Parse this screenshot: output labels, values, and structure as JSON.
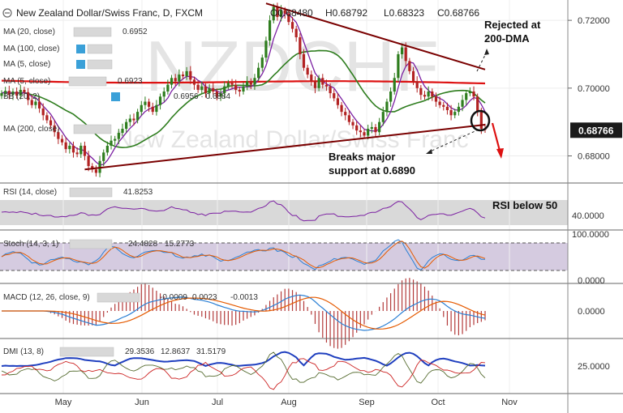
{
  "header": {
    "title": "New Zealand Dollar/Swiss Franc, D, FXCM",
    "ohlc": [
      "O0.68480",
      "H0.68792",
      "L0.68323",
      "C0.68766"
    ],
    "watermark": "NZDCHF",
    "watermark_sub": "New Zealand Dollar/Swiss Franc"
  },
  "legend_main": [
    {
      "label": "MA (20, close)",
      "value": "0.6952",
      "color": "#2e7d1e"
    },
    {
      "label": "MA (100, close)",
      "value": "",
      "color": "#b22222"
    },
    {
      "label": "MA (5, close)",
      "value": "",
      "color": "#9c27b0"
    },
    {
      "label": "MA (5, close)",
      "value": "0.6923",
      "color": "#6a1b9a"
    },
    {
      "label": "BB (20, 2)",
      "value": "0.6956 · 0.6884",
      "color": "#888888"
    },
    {
      "label": "MA (200, close)",
      "value": "",
      "color": "#cc0000"
    }
  ],
  "annotations": {
    "rejected": "Rejected at\n200-DMA",
    "breaks": "Breaks major\nsupport at 0.6890",
    "rsi_note": "RSI below 50"
  },
  "last_price": "0.68766",
  "colors": {
    "up": "#2e7d1e",
    "down": "#b22222",
    "ma20": "#2e7d1e",
    "ma200": "#dd1111",
    "ma5": "#7b1fa2",
    "trend": "#7a0000",
    "last_bg": "#1a1a1a"
  },
  "chart_data": [
    {
      "type": "candlestick",
      "title": "New Zealand Dollar/Swiss Franc, D, FXCM",
      "x_ticks": [
        "May",
        "Jun",
        "Jul",
        "Aug",
        "Sep",
        "Oct",
        "Nov"
      ],
      "ylim": [
        0.672,
        0.726
      ],
      "y_ticks": [
        0.68,
        0.7,
        0.72
      ],
      "y_tick_labels": [
        "0.68000",
        "0.70000",
        "0.72000"
      ],
      "close": [
        0.6985,
        0.6992,
        0.698,
        0.699,
        0.6978,
        0.6995,
        0.6988,
        0.6965,
        0.695,
        0.696,
        0.694,
        0.692,
        0.6905,
        0.689,
        0.687,
        0.685,
        0.684,
        0.682,
        0.683,
        0.681,
        0.6805,
        0.683,
        0.68,
        0.677,
        0.676,
        0.675,
        0.6785,
        0.681,
        0.683,
        0.6845,
        0.685,
        0.6868,
        0.688,
        0.69,
        0.691,
        0.6905,
        0.693,
        0.695,
        0.696,
        0.6945,
        0.693,
        0.695,
        0.6975,
        0.699,
        0.701,
        0.703,
        0.702,
        0.704,
        0.7035,
        0.705,
        0.7025,
        0.701,
        0.6995,
        0.7005,
        0.6985,
        0.7,
        0.699,
        0.6975,
        0.6985,
        0.7005,
        0.7015,
        0.701,
        0.6995,
        0.699,
        0.7005,
        0.702,
        0.701,
        0.703,
        0.706,
        0.709,
        0.714,
        0.72,
        0.724,
        0.721,
        0.723,
        0.722,
        0.7195,
        0.7175,
        0.715,
        0.71,
        0.706,
        0.704,
        0.702,
        0.7,
        0.703,
        0.701,
        0.7005,
        0.6985,
        0.697,
        0.695,
        0.693,
        0.692,
        0.69,
        0.689,
        0.6875,
        0.687,
        0.686,
        0.688,
        0.6885,
        0.687,
        0.69,
        0.693,
        0.696,
        0.699,
        0.703,
        0.71,
        0.712,
        0.708,
        0.705,
        0.702,
        0.7,
        0.698,
        0.6975,
        0.699,
        0.6975,
        0.696,
        0.695,
        0.6945,
        0.6935,
        0.692,
        0.693,
        0.6945,
        0.6965,
        0.6985,
        0.699,
        0.6975,
        0.693,
        0.688,
        0.6877
      ],
      "rsi_title": "RSI (14, close)",
      "rsi_value": "41.8253",
      "rsi_tick": "40.0000",
      "stoch_title": "Stoch (14, 3, 1)",
      "stoch_values": [
        "24.4828",
        "15.2773"
      ],
      "stoch_ticks": [
        "100.0000",
        "0.0000"
      ],
      "macd_title": "MACD (12, 26, close, 9)",
      "macd_values": [
        "-0.0009",
        "0.0023",
        "-0.0013"
      ],
      "macd_tick": "0.0000",
      "dmi_title": "DMI (13, 8)",
      "dmi_values": [
        "29.3536",
        "12.8637",
        "31.5179"
      ],
      "dmi_tick": "25.0000"
    }
  ]
}
